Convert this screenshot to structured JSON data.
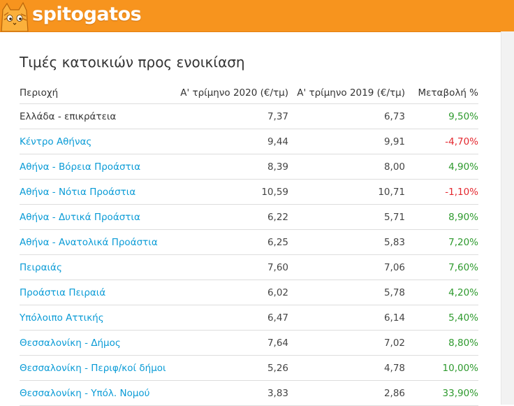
{
  "header": {
    "logo_text": "spitogatos",
    "brand_color": "#f7941e"
  },
  "page_title": "Τιμές κατοικιών προς ενοικίαση",
  "table": {
    "headers": [
      "Περιοχή",
      "Α' τρίμηνο 2020 (€/τμ)",
      "Α' τρίμηνο 2019 (€/τμ)",
      "Μεταβολή %"
    ],
    "rows": [
      {
        "region": "Ελλάδα - επικράτεια",
        "link": false,
        "q1_2020": "7,37",
        "q1_2019": "6,73",
        "change": "9,50%",
        "trend": "positive"
      },
      {
        "region": "Κέντρο Αθήνας",
        "link": true,
        "q1_2020": "9,44",
        "q1_2019": "9,91",
        "change": "-4,70%",
        "trend": "negative"
      },
      {
        "region": "Αθήνα - Βόρεια Προάστια",
        "link": true,
        "q1_2020": "8,39",
        "q1_2019": "8,00",
        "change": "4,90%",
        "trend": "positive"
      },
      {
        "region": "Αθήνα - Νότια Προάστια",
        "link": true,
        "q1_2020": "10,59",
        "q1_2019": "10,71",
        "change": "-1,10%",
        "trend": "negative"
      },
      {
        "region": "Αθήνα - Δυτικά Προάστια",
        "link": true,
        "q1_2020": "6,22",
        "q1_2019": "5,71",
        "change": "8,90%",
        "trend": "positive"
      },
      {
        "region": "Αθήνα - Ανατολικά Προάστια",
        "link": true,
        "q1_2020": "6,25",
        "q1_2019": "5,83",
        "change": "7,20%",
        "trend": "positive"
      },
      {
        "region": "Πειραιάς",
        "link": true,
        "q1_2020": "7,60",
        "q1_2019": "7,06",
        "change": "7,60%",
        "trend": "positive"
      },
      {
        "region": "Προάστια Πειραιά",
        "link": true,
        "q1_2020": "6,02",
        "q1_2019": "5,78",
        "change": "4,20%",
        "trend": "positive"
      },
      {
        "region": "Υπόλοιπο Αττικής",
        "link": true,
        "q1_2020": "6,47",
        "q1_2019": "6,14",
        "change": "5,40%",
        "trend": "positive"
      },
      {
        "region": "Θεσσαλονίκη - Δήμος",
        "link": true,
        "q1_2020": "7,64",
        "q1_2019": "7,02",
        "change": "8,80%",
        "trend": "positive"
      },
      {
        "region": "Θεσσαλονίκη - Περιφ/κοί δήμοι",
        "link": true,
        "q1_2020": "5,26",
        "q1_2019": "4,78",
        "change": "10,00%",
        "trend": "positive"
      },
      {
        "region": "Θεσσαλονίκη - Υπόλ. Νομού",
        "link": true,
        "q1_2020": "3,83",
        "q1_2019": "2,86",
        "change": "33,90%",
        "trend": "positive"
      }
    ]
  },
  "colors": {
    "link": "#0a9bd6",
    "positive": "#2e9a2e",
    "negative": "#e4282f"
  }
}
